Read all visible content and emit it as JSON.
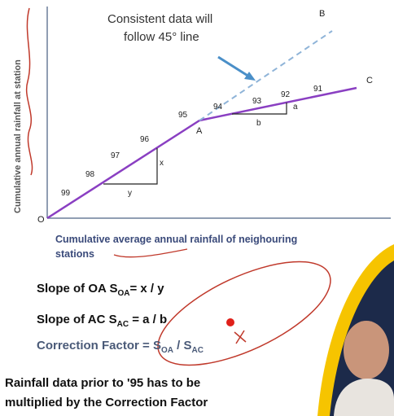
{
  "annotation": {
    "lines": [
      "Consistent data will",
      "follow 45° line"
    ]
  },
  "y_axis_label": "Cumulative annual rainfall at station",
  "x_axis_label": {
    "lines": [
      "Cumulative average annual rainfall of neighouring",
      "stations"
    ]
  },
  "point_labels": [
    "O",
    "A",
    "B",
    "C"
  ],
  "year_labels": [
    "99",
    "98",
    "97",
    "96",
    "95",
    "94",
    "93",
    "92",
    "91"
  ],
  "triangle_labels": [
    "x",
    "y",
    "a",
    "b"
  ],
  "equations": [
    {
      "text": "Slope of OA S",
      "sub": "OA",
      "tail": "= x / y"
    },
    {
      "text": "Slope of AC S",
      "sub": "AC",
      "tail": " = a / b"
    },
    {
      "text": "Correction Factor = S",
      "sub": "OA",
      "tail": " / S",
      "sub2": "AC"
    }
  ],
  "note": {
    "lines": [
      "Rainfall data prior to '95 has to be",
      "multiplied by the Correction Factor"
    ]
  }
}
